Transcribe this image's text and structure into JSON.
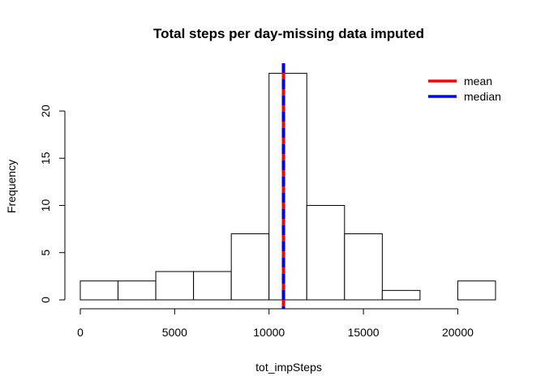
{
  "chart_data": {
    "type": "bar",
    "subtype": "histogram",
    "title": "Total steps per day-missing data imputed",
    "xlabel": "tot_impSteps",
    "ylabel": "Frequency",
    "bins": [
      {
        "from": 0,
        "to": 2000,
        "count": 2
      },
      {
        "from": 2000,
        "to": 4000,
        "count": 2
      },
      {
        "from": 4000,
        "to": 6000,
        "count": 3
      },
      {
        "from": 6000,
        "to": 8000,
        "count": 3
      },
      {
        "from": 8000,
        "to": 10000,
        "count": 7
      },
      {
        "from": 10000,
        "to": 12000,
        "count": 24
      },
      {
        "from": 12000,
        "to": 14000,
        "count": 10
      },
      {
        "from": 14000,
        "to": 16000,
        "count": 7
      },
      {
        "from": 16000,
        "to": 18000,
        "count": 1
      },
      {
        "from": 18000,
        "to": 20000,
        "count": 0
      },
      {
        "from": 20000,
        "to": 22000,
        "count": 2
      }
    ],
    "xlim": [
      0,
      22000
    ],
    "ylim": [
      0,
      25
    ],
    "x_ticks": [
      0,
      5000,
      10000,
      15000,
      20000
    ],
    "x_tick_labels": [
      "0",
      "5000",
      "10000",
      "15000",
      "20000"
    ],
    "y_ticks": [
      0,
      5,
      10,
      15,
      20
    ],
    "y_tick_labels": [
      "0",
      "5",
      "10",
      "15",
      "20"
    ],
    "reference_lines": [
      {
        "name": "mean",
        "value": 10766,
        "color": "#ff0000",
        "style": "solid"
      },
      {
        "name": "median",
        "value": 10766,
        "color": "#0000ff",
        "style": "dashed"
      }
    ],
    "legend": {
      "placement": "top-right",
      "entries": [
        {
          "label": "mean",
          "color": "#ff0000"
        },
        {
          "label": "median",
          "color": "#0000ff"
        }
      ]
    },
    "grid": false,
    "bar_fill": "#ffffff",
    "bar_stroke": "#000000"
  }
}
